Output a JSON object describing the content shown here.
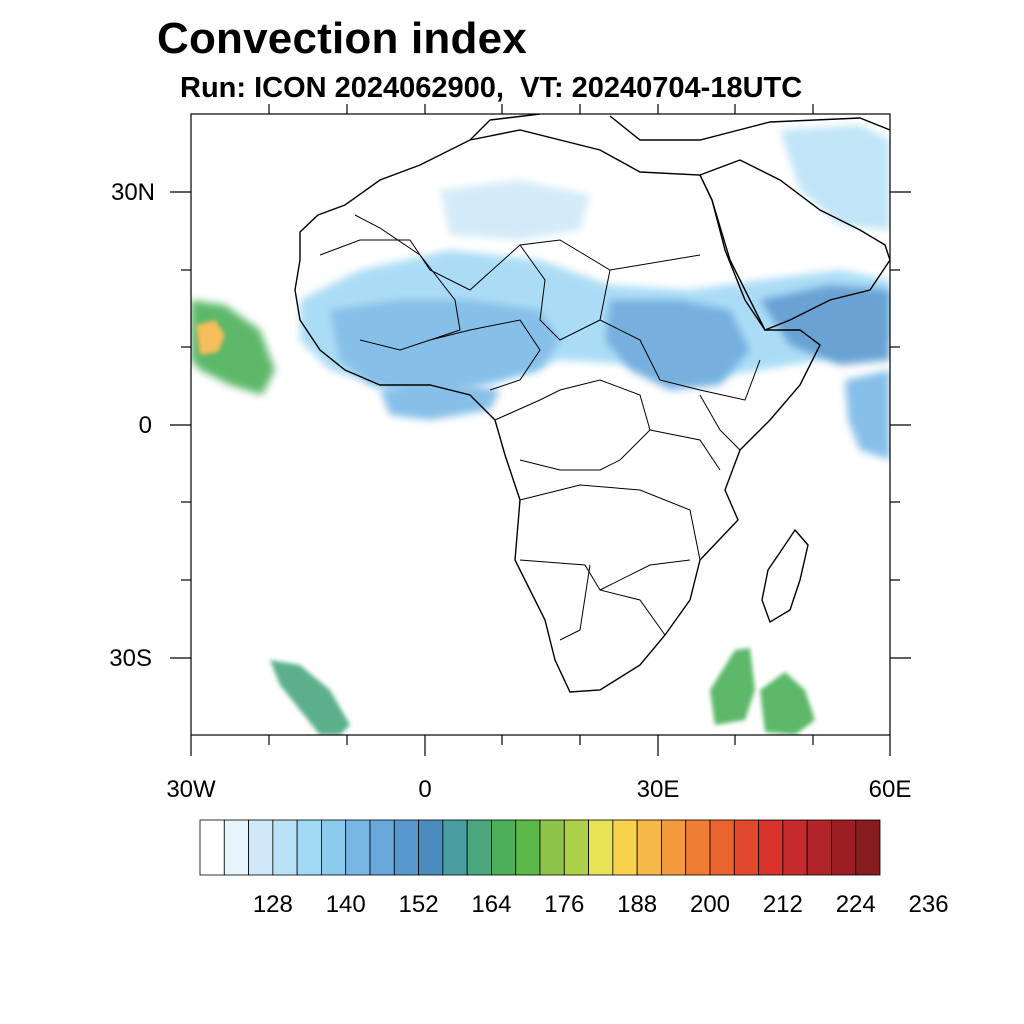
{
  "title": "Convection index",
  "subtitle": "Run: ICON 2024062900,  VT: 20240704-18UTC",
  "axes": {
    "lon_labels": [
      "30W",
      "0",
      "30E",
      "60E"
    ],
    "lat_labels": [
      "30N",
      "0",
      "30S"
    ]
  },
  "colorbar": {
    "labels": [
      "128",
      "140",
      "152",
      "164",
      "176",
      "188",
      "200",
      "212",
      "224",
      "236"
    ],
    "colors": [
      "#ffffff",
      "#e8f5fc",
      "#cfe9f8",
      "#b9e2f7",
      "#a2d9f5",
      "#8ccbee",
      "#79b8e6",
      "#68a8dc",
      "#5898cf",
      "#4a8cc0",
      "#4a9ea2",
      "#4aa77e",
      "#4cb05a",
      "#5cb848",
      "#8bc448",
      "#acd04a",
      "#e6e356",
      "#f8d14e",
      "#f5b848",
      "#f39b3e",
      "#ef7d34",
      "#ea6430",
      "#e2482b",
      "#d8332c",
      "#c62a2d",
      "#b0242a",
      "#9c1d22",
      "#861c1f"
    ]
  },
  "regions": {
    "west_africa": "#79b8e6",
    "sahel": "#a2d9f5",
    "east_africa": "#68a8dc",
    "arabian_sea": "#5898cf",
    "atlantic_itcz": "#4cb05a",
    "atlantic_core": "#f5b848",
    "south_atlantic": "#4aa77e",
    "indian_ocean_south": "#4cb05a",
    "guinea_gulf": "#79b8e6",
    "algeria": "#cfe9f8",
    "levant": "#b9e2f7"
  }
}
